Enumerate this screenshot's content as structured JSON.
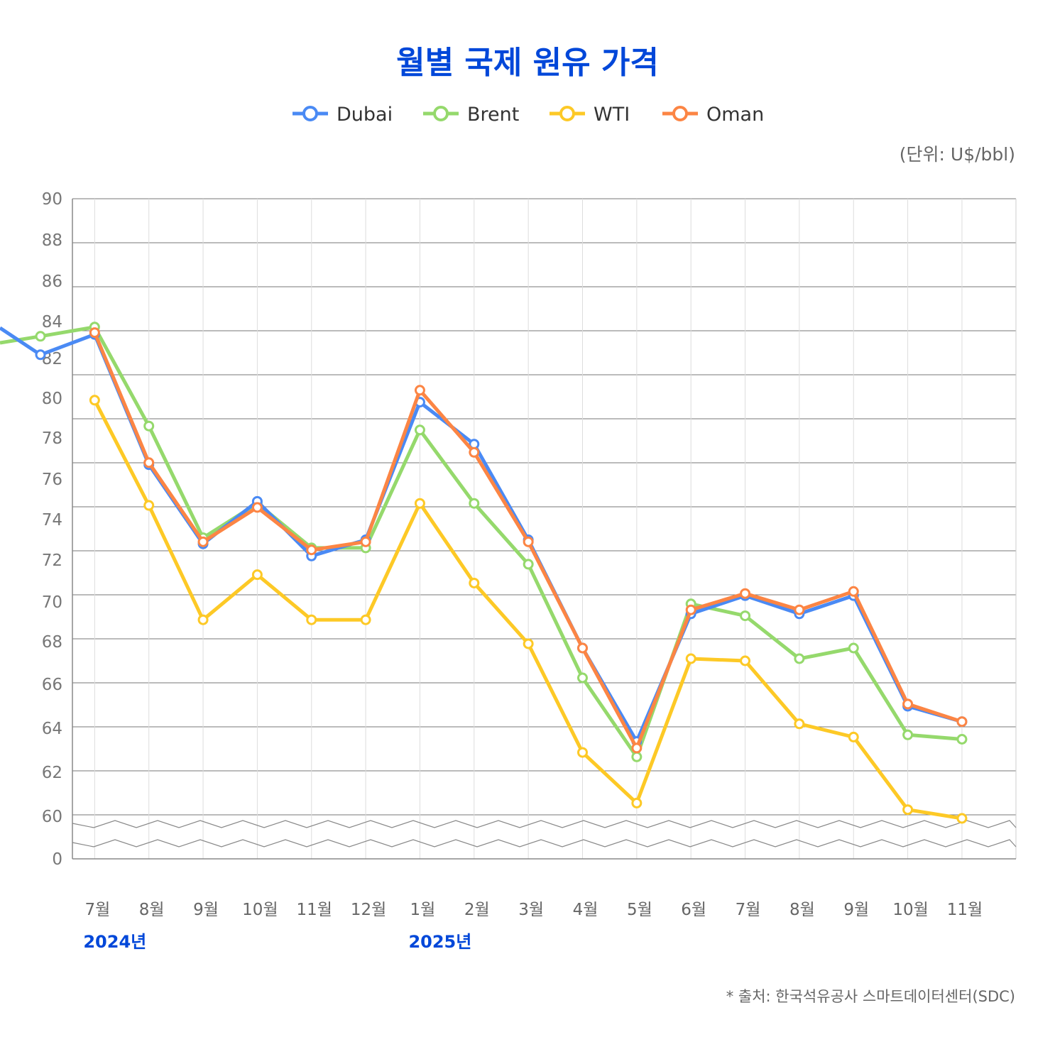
{
  "chart_data": {
    "type": "line",
    "title": "월별 국제 원유 가격",
    "unit_label": "(단위: U$/bbl)",
    "source": "* 출처: 한국석유공사 스마트데이터센터(SDC)",
    "categories": [
      "",
      "7월",
      "8월",
      "9월",
      "10월",
      "11월",
      "12월",
      "1월",
      "2월",
      "3월",
      "4월",
      "5월",
      "6월",
      "7월",
      "8월",
      "9월",
      "10월",
      "11월"
    ],
    "year_labels": [
      {
        "index": 1,
        "label": "2024년"
      },
      {
        "index": 7,
        "label": "2025년"
      }
    ],
    "y_ticks": [
      "90",
      "88",
      "86",
      "84",
      "82",
      "80",
      "78",
      "76",
      "74",
      "72",
      "70",
      "68",
      "66",
      "64",
      "62",
      "60",
      "0"
    ],
    "ylim": [
      60,
      90
    ],
    "axis_break": true,
    "grid": true,
    "legend_position": "top-center",
    "series": [
      {
        "name": "Dubai",
        "color": "#4a8af4",
        "values": [
          82.2,
          83.3,
          76.7,
          72.8,
          74.9,
          72.2,
          73.0,
          79.8,
          77.7,
          73.0,
          67.7,
          63.4,
          69.4,
          70.3,
          69.4,
          70.3,
          65.0,
          64.3
        ]
      },
      {
        "name": "Brent",
        "color": "#95d96c",
        "values": [
          83.2,
          83.7,
          78.6,
          73.1,
          74.8,
          72.6,
          72.6,
          78.4,
          74.8,
          71.8,
          66.3,
          62.7,
          69.9,
          69.3,
          67.2,
          67.7,
          63.7,
          63.5
        ]
      },
      {
        "name": "WTI",
        "color": "#fdc926",
        "values": [
          null,
          79.9,
          74.7,
          69.1,
          71.3,
          69.1,
          69.1,
          74.8,
          70.9,
          67.9,
          62.9,
          60.6,
          67.2,
          67.1,
          64.2,
          63.6,
          60.3,
          59.9
        ]
      },
      {
        "name": "Oman",
        "color": "#fc8544",
        "values": [
          null,
          83.4,
          76.8,
          72.9,
          74.6,
          72.5,
          72.9,
          80.4,
          77.3,
          72.9,
          67.7,
          63.1,
          69.6,
          70.4,
          69.6,
          70.5,
          65.1,
          64.3
        ]
      }
    ]
  }
}
